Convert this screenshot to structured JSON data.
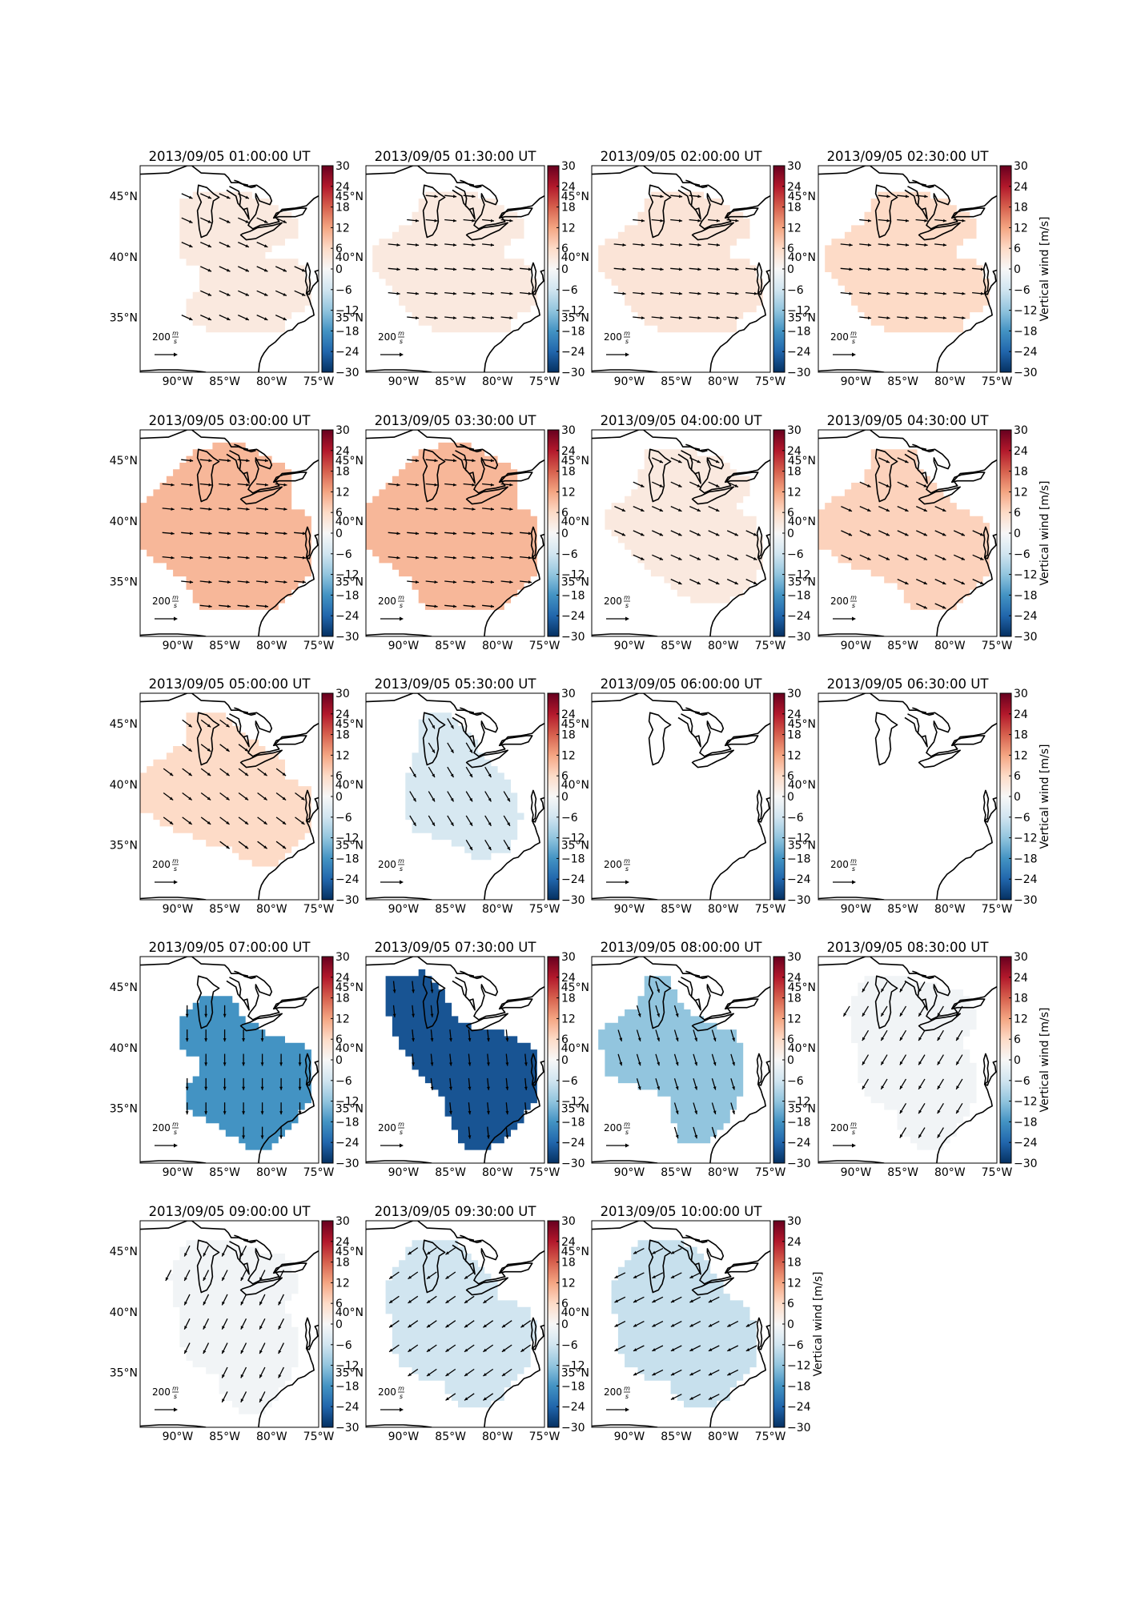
{
  "figure": {
    "colorbar_label": "Vertical wind [m/s]",
    "colorbar_ticks": [
      "30",
      "24",
      "18",
      "12",
      "6",
      "0",
      "−6",
      "−12",
      "−18",
      "−24",
      "−30"
    ],
    "lat_labels": [
      "45°N",
      "40°N",
      "35°N"
    ],
    "lon_labels": [
      "90°W",
      "85°W",
      "80°W",
      "75°W"
    ],
    "scale_label": "200",
    "scale_unit_num": "m",
    "scale_unit_den": "s",
    "colormap": {
      "low": "#0a3a7a",
      "mid": "#f7f7f7",
      "high": "#67001f"
    }
  },
  "panels": [
    {
      "title": "2013/09/05 01:00:00 UT",
      "value": 3,
      "arrow_dir": [
        1.0,
        0.45
      ],
      "shape": "A",
      "colorbar_label": false
    },
    {
      "title": "2013/09/05 01:30:00 UT",
      "value": 3,
      "arrow_dir": [
        1.0,
        0.1
      ],
      "shape": "B",
      "colorbar_label": false
    },
    {
      "title": "2013/09/05 02:00:00 UT",
      "value": 4,
      "arrow_dir": [
        1.0,
        0.1
      ],
      "shape": "B",
      "colorbar_label": false
    },
    {
      "title": "2013/09/05 02:30:00 UT",
      "value": 6,
      "arrow_dir": [
        1.0,
        0.1
      ],
      "shape": "B",
      "colorbar_label": true
    },
    {
      "title": "2013/09/05 03:00:00 UT",
      "value": 10,
      "arrow_dir": [
        1.0,
        0.1
      ],
      "shape": "C",
      "colorbar_label": false
    },
    {
      "title": "2013/09/05 03:30:00 UT",
      "value": 10,
      "arrow_dir": [
        1.0,
        0.1
      ],
      "shape": "C",
      "colorbar_label": false
    },
    {
      "title": "2013/09/05 04:00:00 UT",
      "value": 3,
      "arrow_dir": [
        1.0,
        0.45
      ],
      "shape": "D",
      "colorbar_label": false
    },
    {
      "title": "2013/09/05 04:30:00 UT",
      "value": 7,
      "arrow_dir": [
        1.0,
        0.45
      ],
      "shape": "E",
      "colorbar_label": true
    },
    {
      "title": "2013/09/05 05:00:00 UT",
      "value": 6,
      "arrow_dir": [
        1.0,
        0.75
      ],
      "shape": "F",
      "colorbar_label": false
    },
    {
      "title": "2013/09/05 05:30:00 UT",
      "value": -5,
      "arrow_dir": [
        0.6,
        1.0
      ],
      "shape": "G",
      "colorbar_label": false
    },
    {
      "title": "2013/09/05 06:00:00 UT",
      "value": null,
      "arrow_dir": null,
      "shape": null,
      "colorbar_label": false
    },
    {
      "title": "2013/09/05 06:30:00 UT",
      "value": null,
      "arrow_dir": null,
      "shape": null,
      "colorbar_label": true
    },
    {
      "title": "2013/09/05 07:00:00 UT",
      "value": -18,
      "arrow_dir": [
        0.0,
        1.0
      ],
      "shape": "H",
      "colorbar_label": false
    },
    {
      "title": "2013/09/05 07:30:00 UT",
      "value": -26,
      "arrow_dir": [
        0.1,
        1.0
      ],
      "shape": "I",
      "colorbar_label": false
    },
    {
      "title": "2013/09/05 08:00:00 UT",
      "value": -12,
      "arrow_dir": [
        0.3,
        1.0
      ],
      "shape": "J",
      "colorbar_label": false
    },
    {
      "title": "2013/09/05 08:30:00 UT",
      "value": -1,
      "arrow_dir": [
        -0.6,
        1.0
      ],
      "shape": "K",
      "colorbar_label": true
    },
    {
      "title": "2013/09/05 09:00:00 UT",
      "value": -1,
      "arrow_dir": [
        -0.5,
        1.0
      ],
      "shape": "K",
      "colorbar_label": false
    },
    {
      "title": "2013/09/05 09:30:00 UT",
      "value": -6,
      "arrow_dir": [
        -1.0,
        0.7
      ],
      "shape": "L",
      "colorbar_label": false
    },
    {
      "title": "2013/09/05 10:00:00 UT",
      "value": -7,
      "arrow_dir": [
        -1.0,
        0.5
      ],
      "shape": "M",
      "colorbar_label": true
    }
  ]
}
